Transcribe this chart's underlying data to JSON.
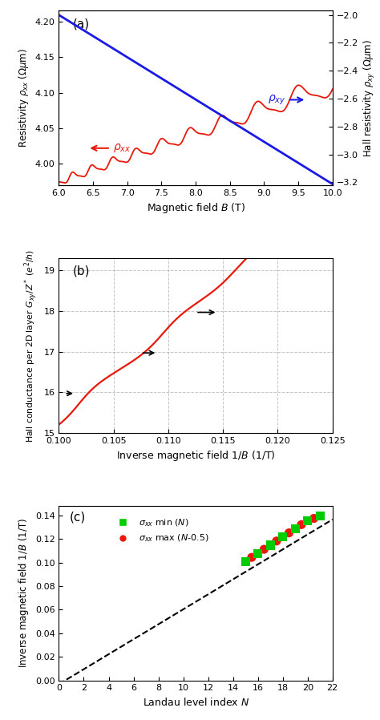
{
  "panel_a": {
    "title": "(a)",
    "xlabel": "Magnetic field $B$ (T)",
    "ylabel_left": "Resistivity $\\rho_{xx}$ ($\\Omega\\mu$m)",
    "ylabel_right": "Hall resistivity $\\rho_{xy}$ ($\\Omega\\mu$m)",
    "B_range": [
      6.0,
      10.0
    ],
    "rhoxx_ylim": [
      3.97,
      4.215
    ],
    "rhoxy_ylim": [
      -3.22,
      -1.97
    ],
    "rhoxx_yticks": [
      4.0,
      4.05,
      4.1,
      4.15,
      4.2
    ],
    "rhoxy_yticks": [
      -3.2,
      -3.0,
      -2.8,
      -2.6,
      -2.4,
      -2.2,
      -2.0
    ],
    "xticks": [
      6.0,
      6.5,
      7.0,
      7.5,
      8.0,
      8.5,
      9.0,
      9.5,
      10.0
    ]
  },
  "panel_b": {
    "title": "(b)",
    "xlabel": "Inverse magnetic field 1/$B$ (1/T)",
    "ylabel": "Hall conductance per 2D layer $G_{xy}/Z^*$ ($e^2/h$)",
    "x_range": [
      0.1,
      0.125
    ],
    "y_range": [
      15.0,
      19.3
    ],
    "xticks": [
      0.1,
      0.105,
      0.11,
      0.115,
      0.12,
      0.125
    ],
    "yticks": [
      15,
      16,
      17,
      18,
      19
    ],
    "arrows": [
      {
        "x_tail": 0.1005,
        "x_head": 0.1015,
        "y": 15.97
      },
      {
        "x_tail": 0.1075,
        "x_head": 0.109,
        "y": 16.97
      },
      {
        "x_tail": 0.1125,
        "x_head": 0.1145,
        "y": 17.97
      }
    ]
  },
  "panel_c": {
    "title": "(c)",
    "xlabel": "Landau level index $N$",
    "ylabel": "Inverse magnetic field 1/$B$ (1/T)",
    "x_range": [
      0,
      22
    ],
    "y_range": [
      0.0,
      0.148
    ],
    "xticks": [
      0,
      2,
      4,
      6,
      8,
      10,
      12,
      14,
      16,
      18,
      20,
      22
    ],
    "yticks": [
      0.0,
      0.02,
      0.04,
      0.06,
      0.08,
      0.1,
      0.12,
      0.14
    ],
    "green_N": [
      15,
      16,
      17,
      18,
      19,
      20,
      21
    ],
    "green_y": [
      0.101,
      0.1078,
      0.1148,
      0.1218,
      0.1288,
      0.1355,
      0.1395
    ],
    "red_N": [
      15.5,
      16.5,
      17.5,
      18.5,
      19.5,
      20.5
    ],
    "red_y": [
      0.1044,
      0.1113,
      0.1183,
      0.1252,
      0.1322,
      0.1375
    ],
    "dashed_slope": 0.006355,
    "dashed_intercept": -0.0032,
    "legend_green": "$\\sigma_{xx}$ min ($N$)",
    "legend_red": "$\\sigma_{xx}$ max ($N$-0.5)"
  },
  "red_color": "#e8190a",
  "blue_color": "#1a1ae8",
  "green_color": "#00cc00",
  "bg_color": "#ffffff"
}
